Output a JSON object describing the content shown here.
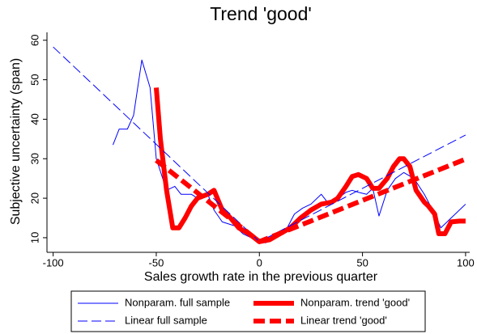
{
  "chart_data": {
    "type": "line",
    "title": "Trend 'good'",
    "xlabel": "Sales growth rate in the previous quarter",
    "ylabel": "Subjective uncertainty (span)",
    "xlim": [
      -103,
      102
    ],
    "ylim": [
      6.3,
      62
    ],
    "xticks": [
      -100,
      -50,
      0,
      50,
      100
    ],
    "yticks": [
      10,
      20,
      30,
      40,
      50,
      60
    ],
    "series": [
      {
        "name": "Nonparam. full sample",
        "color": "#0000ff",
        "width": 1,
        "dash": "none",
        "x": [
          -71,
          -68,
          -64,
          -61,
          -57,
          -53,
          -50,
          -45,
          -41,
          -38,
          -33,
          -30,
          -25,
          -22,
          -18,
          -12,
          -8,
          -4,
          0,
          3,
          6,
          10,
          13,
          17,
          21,
          25,
          30,
          33,
          37,
          42,
          45,
          48,
          52,
          55,
          58,
          62,
          66,
          70,
          75,
          80,
          85,
          88,
          93,
          100
        ],
        "values": [
          33.5,
          37.5,
          37.5,
          41,
          55,
          48,
          30,
          22,
          23,
          21,
          21,
          20,
          21,
          17,
          14,
          13,
          11,
          10,
          9,
          8.7,
          9.5,
          11,
          12,
          16,
          17.5,
          18.5,
          21,
          19,
          19.5,
          21.5,
          22,
          21.5,
          21,
          22.5,
          15.5,
          22,
          25,
          26.5,
          25,
          21,
          16,
          12.5,
          15,
          18.5
        ]
      },
      {
        "name": "Nonparam. trend 'good'",
        "color": "#ff0000",
        "width": 6,
        "dash": "none",
        "x": [
          -50,
          -48,
          -45,
          -42,
          -39,
          -36,
          -33,
          -30,
          -25,
          -22,
          -18,
          -14,
          -10,
          -5,
          0,
          5,
          10,
          15,
          20,
          25,
          30,
          35,
          38,
          42,
          45,
          48,
          52,
          55,
          58,
          62,
          65,
          68,
          70,
          73,
          76,
          80,
          82,
          85,
          87,
          90,
          93,
          97,
          100
        ],
        "values": [
          48,
          35,
          22,
          12.5,
          12.5,
          15,
          18,
          20,
          21,
          22,
          17,
          15,
          12.5,
          11,
          9,
          9.5,
          11,
          12.5,
          15,
          17,
          18.5,
          19,
          20,
          23,
          25.5,
          26,
          25,
          22.5,
          22.5,
          25,
          28,
          30,
          30,
          28,
          22,
          19,
          18,
          16,
          11,
          11,
          14,
          14.2,
          14.2
        ]
      },
      {
        "name": "Linear full sample",
        "color": "#0000ff",
        "width": 1,
        "dash": "12 5",
        "x": [
          -100,
          0,
          100
        ],
        "values": [
          58.3,
          9,
          36
        ]
      },
      {
        "name": "Linear trend 'good'",
        "color": "#ff0000",
        "width": 6,
        "dash": "14 6",
        "x": [
          -50,
          0,
          100
        ],
        "values": [
          29.6,
          9,
          29.9
        ]
      }
    ]
  }
}
